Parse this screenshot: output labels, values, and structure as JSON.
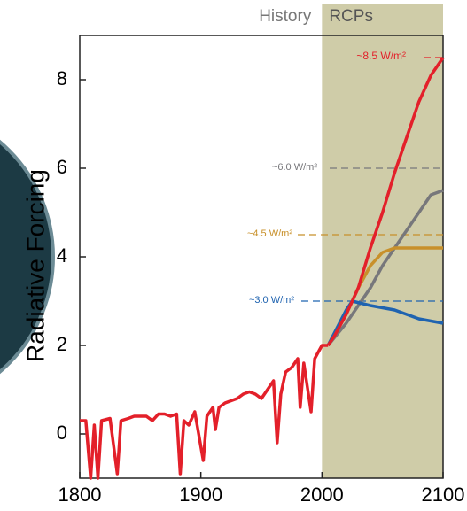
{
  "chart_data": {
    "type": "line",
    "y_label": "Radiative Forcing",
    "regions": [
      {
        "label": "History",
        "color": "#ffffff"
      },
      {
        "label": "RCPs",
        "start": 2000,
        "end": 2100,
        "color": "#cfcca8"
      }
    ],
    "xlim": [
      1800,
      2100
    ],
    "xticks": [
      1800,
      1900,
      2000,
      2100
    ],
    "ylim": [
      -1,
      9
    ],
    "yticks": [
      0,
      2,
      4,
      6,
      8
    ],
    "series": [
      {
        "name": "History",
        "color": "#e3202a",
        "x": [
          1800,
          1805,
          1809,
          1812,
          1815,
          1818,
          1825,
          1831,
          1834,
          1840,
          1845,
          1850,
          1855,
          1860,
          1865,
          1870,
          1875,
          1880,
          1883,
          1886,
          1890,
          1895,
          1902,
          1905,
          1910,
          1912,
          1915,
          1920,
          1925,
          1930,
          1935,
          1940,
          1945,
          1950,
          1955,
          1960,
          1963,
          1966,
          1970,
          1975,
          1980,
          1982,
          1985,
          1991,
          1994,
          2000,
          2005
        ],
        "values": [
          0.3,
          0.3,
          -1.0,
          0.2,
          -1.0,
          0.3,
          0.35,
          -0.9,
          0.3,
          0.35,
          0.4,
          0.4,
          0.4,
          0.3,
          0.45,
          0.45,
          0.4,
          0.45,
          -0.9,
          0.3,
          0.2,
          0.5,
          -0.6,
          0.4,
          0.6,
          0.1,
          0.6,
          0.7,
          0.75,
          0.8,
          0.9,
          0.95,
          0.9,
          0.8,
          1.0,
          1.2,
          -0.2,
          0.9,
          1.4,
          1.5,
          1.7,
          0.6,
          1.6,
          0.5,
          1.7,
          2.0,
          2.0
        ]
      },
      {
        "name": "~8.5 W/m²",
        "level": 8.5,
        "color": "#e3202a",
        "x": [
          2005,
          2010,
          2020,
          2030,
          2040,
          2050,
          2060,
          2070,
          2080,
          2090,
          2100
        ],
        "values": [
          2.0,
          2.2,
          2.7,
          3.3,
          4.2,
          5.0,
          5.9,
          6.7,
          7.5,
          8.1,
          8.5
        ]
      },
      {
        "name": "~6.0 W/m²",
        "level": 6.0,
        "color": "#77777b",
        "x": [
          2005,
          2020,
          2030,
          2040,
          2050,
          2060,
          2070,
          2080,
          2090,
          2100
        ],
        "values": [
          2.0,
          2.5,
          2.9,
          3.3,
          3.8,
          4.2,
          4.6,
          5.0,
          5.4,
          5.5
        ]
      },
      {
        "name": "~4.5 W/m²",
        "level": 4.5,
        "color": "#c8902a",
        "x": [
          2005,
          2020,
          2030,
          2040,
          2050,
          2060,
          2070,
          2080,
          2090,
          2100
        ],
        "values": [
          2.0,
          2.7,
          3.3,
          3.8,
          4.1,
          4.2,
          4.2,
          4.2,
          4.2,
          4.2
        ]
      },
      {
        "name": "~3.0 W/m²",
        "level": 3.0,
        "color": "#1f63b0",
        "x": [
          2005,
          2020,
          2025,
          2040,
          2060,
          2080,
          2100
        ],
        "values": [
          2.0,
          2.8,
          3.0,
          2.9,
          2.8,
          2.6,
          2.5
        ]
      }
    ]
  }
}
